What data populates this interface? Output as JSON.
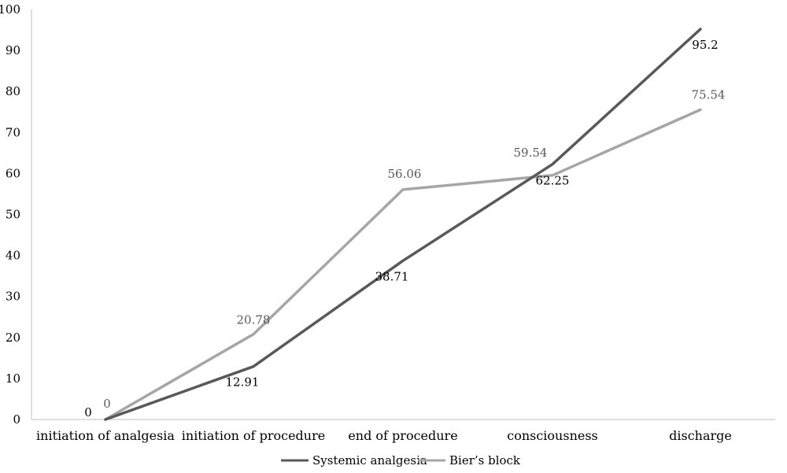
{
  "chart_data": {
    "type": "line",
    "title": "",
    "xlabel": "",
    "ylabel": "",
    "categories": [
      "initiation of analgesia",
      "initiation of procedure",
      "end of procedure",
      "consciousness",
      "discharge"
    ],
    "ylim": [
      0,
      100
    ],
    "yticks": [
      0,
      10,
      20,
      30,
      40,
      50,
      60,
      70,
      80,
      90,
      100
    ],
    "grid": false,
    "legend_position": "bottom",
    "series": [
      {
        "name": "Systemic analgesia",
        "color": "#595959",
        "values": [
          0,
          12.91,
          38.71,
          62.25,
          95.2
        ],
        "labels": [
          "0",
          "12.91",
          "38.71",
          "62.25",
          "95.2"
        ],
        "label_color": "#000000",
        "label_position": "below"
      },
      {
        "name": "Bier’s block",
        "color": "#a6a6a6",
        "values": [
          0,
          20.78,
          56.06,
          59.54,
          75.54
        ],
        "labels": [
          "0",
          "20.78",
          "56.06",
          "59.54",
          "75.54"
        ],
        "label_color": "#595959",
        "label_position": "above"
      }
    ]
  }
}
